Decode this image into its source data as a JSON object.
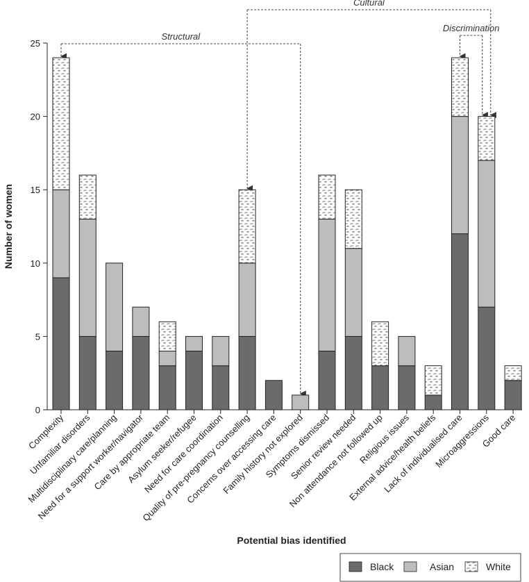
{
  "chart_data": {
    "type": "bar",
    "stacked": true,
    "xlabel": "Potential bias identified",
    "ylabel": "Number of women",
    "ylim": [
      0,
      25
    ],
    "yticks": [
      0,
      5,
      10,
      15,
      20,
      25
    ],
    "categories": [
      "Complexity",
      "Unfamiliar disorders",
      "Multidisciplinary care/planning",
      "Need for a support worker/navigator",
      "Care by appropriate team",
      "Asylum seeker/refugee",
      "Need for care coordination",
      "Quality of pre-pregnancy counselling",
      "Concerns over accessing care",
      "Family history not explored",
      "Symptoms dismissed",
      "Senior review needed",
      "Non attendance not followed up",
      "Religious issues",
      "External advice/health beliefs",
      "Lack of individualised care",
      "Microaggressions",
      "Good care"
    ],
    "series": [
      {
        "name": "Black",
        "color": "#6b6b6b",
        "values": [
          9,
          5,
          4,
          5,
          3,
          4,
          3,
          5,
          2,
          0,
          4,
          5,
          3,
          3,
          1,
          12,
          7,
          2
        ]
      },
      {
        "name": "Asian",
        "color": "#bdbdbd",
        "values": [
          6,
          8,
          6,
          2,
          1,
          1,
          2,
          5,
          0,
          1,
          9,
          6,
          0,
          2,
          0,
          8,
          10,
          0
        ]
      },
      {
        "name": "White",
        "color": "pattern",
        "values": [
          9,
          3,
          0,
          0,
          2,
          0,
          0,
          5,
          0,
          0,
          3,
          4,
          3,
          0,
          2,
          4,
          3,
          1
        ]
      }
    ],
    "annotations": [
      {
        "label": "Structural",
        "from_category": "Complexity",
        "to_category": "Family history not explored"
      },
      {
        "label": "Cultural",
        "from_category": "Quality of pre-pregnancy counselling",
        "to_category": "Microaggressions"
      },
      {
        "label": "Discrimination",
        "from_category": "Lack of individualised care",
        "to_category": "Microaggressions"
      }
    ],
    "legend_position": "bottom-right",
    "grid": false
  }
}
